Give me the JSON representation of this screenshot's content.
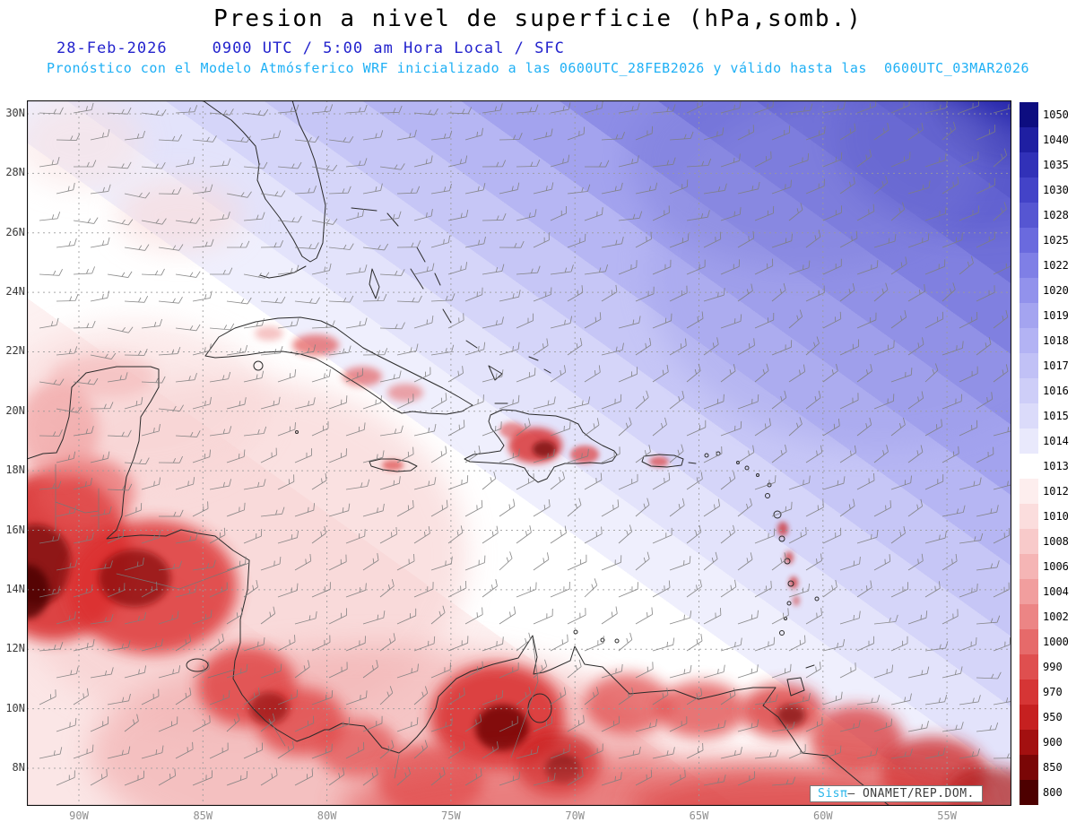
{
  "header": {
    "title": "Presion a nivel de superficie (hPa,somb.)",
    "date": "28-Feb-2026",
    "time_line": "0900 UTC / 5:00 am Hora Local / SFC",
    "forecast_line": "Pronóstico con el Modelo Atmósferico WRF inicializado a las 0600UTC_28FEB2026 y válido hasta las  0600UTC_03MAR2026"
  },
  "map": {
    "lat_labels": [
      "30N",
      "28N",
      "26N",
      "24N",
      "22N",
      "20N",
      "18N",
      "16N",
      "14N",
      "12N",
      "10N",
      "8N"
    ],
    "lon_labels": [
      "90W",
      "85W",
      "80W",
      "75W",
      "70W",
      "65W",
      "60W",
      "55W"
    ],
    "credit_system": "Sisπ",
    "credit_agency": "— ONAMET/REP.DOM."
  },
  "colorbar": {
    "unit": "hPa",
    "levels": [
      "1050",
      "1040",
      "1035",
      "1030",
      "1028",
      "1025",
      "1022",
      "1020",
      "1019",
      "1018",
      "1017",
      "1016",
      "1015",
      "1014",
      "1013",
      "1012",
      "1010",
      "1008",
      "1006",
      "1004",
      "1002",
      "1000",
      "990",
      "970",
      "950",
      "900",
      "850",
      "800"
    ],
    "colors": [
      "#0d0d80",
      "#1f1fa2",
      "#3131b8",
      "#4343c8",
      "#5656d2",
      "#6a6ade",
      "#7f7fe6",
      "#9292ec",
      "#a4a4f0",
      "#b3b3f4",
      "#c1c1f6",
      "#cecef8",
      "#dbdbfa",
      "#e9e9fc",
      "#ffffff",
      "#fdeeee",
      "#fbdddd",
      "#f8caca",
      "#f5b5b5",
      "#f19e9e",
      "#ec8585",
      "#e66a6a",
      "#df4f4f",
      "#d63535",
      "#c62020",
      "#a31010",
      "#7a0606",
      "#4d0000"
    ]
  },
  "chart_data": {
    "type": "heatmap",
    "title": "Presion a nivel de superficie (hPa,somb.)",
    "x_ticks": [
      "90W",
      "85W",
      "80W",
      "75W",
      "70W",
      "65W",
      "60W",
      "55W"
    ],
    "y_ticks": [
      "30N",
      "28N",
      "26N",
      "24N",
      "22N",
      "20N",
      "18N",
      "16N",
      "14N",
      "12N",
      "10N",
      "8N"
    ],
    "levels_hpa": [
      1050,
      1040,
      1035,
      1030,
      1028,
      1025,
      1022,
      1020,
      1019,
      1018,
      1017,
      1016,
      1015,
      1014,
      1013,
      1012,
      1010,
      1008,
      1006,
      1004,
      1002,
      1000,
      990,
      970,
      950,
      900,
      850,
      800
    ],
    "legend_position": "right",
    "grid": true,
    "overlays": [
      "gray wind barbs (easterly trade flow)",
      "coastlines and country borders"
    ],
    "field_summary": "Blue shading (1016 to 1035+ hPa high pressure) over the NW Atlantic in the NE corner fading SW; white band (~1013-1015 hPa) across the central Caribbean; pink to dark red shading (terrain-reduced values below ~1008 hPa) over Central America, Cuba, Hispaniola, Puerto Rico, the Lesser Antilles and northern South America"
  }
}
